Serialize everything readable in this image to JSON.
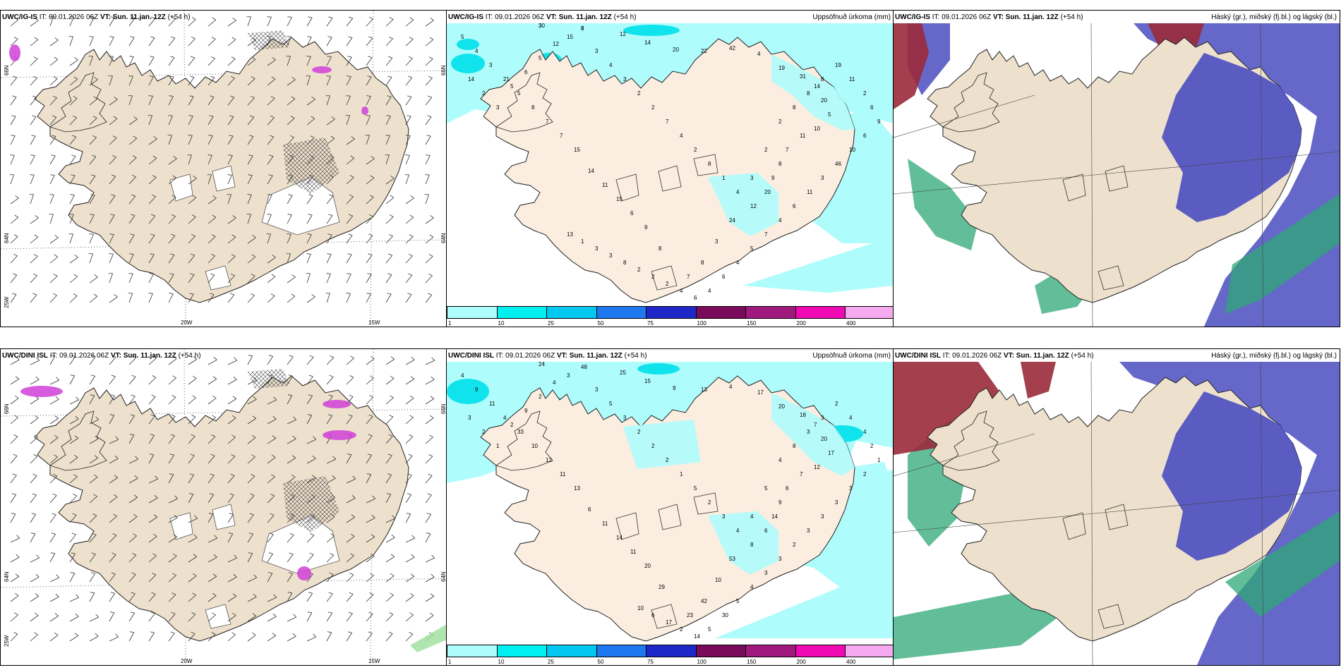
{
  "panels": {
    "p1": {
      "model": "UWC/IG-IS",
      "it": "IT: 09.01.2026 06Z",
      "vt_label": "VT:",
      "vt": "Sun. 11.jan. 12Z",
      "lead": "(+54 h)"
    },
    "p2": {
      "model": "UWC/IG-IS",
      "it": "IT: 09.01.2026 06Z",
      "vt_label": "VT:",
      "vt": "Sun. 11.jan. 12Z",
      "lead": "(+54 h)",
      "field": "Uppsöfnuð úrkoma (mm)"
    },
    "p3": {
      "model": "UWC/IG-IS",
      "it": "IT: 09.01.2026 06Z",
      "vt_label": "VT:",
      "vt": "Sun. 11.jan. 12Z",
      "lead": "(+54 h)",
      "field": "Háský (gr.), miðský (fj.bl.) og lágský (bl.)"
    },
    "p4": {
      "model": "UWC/DINI ISL",
      "it": "IT: 09.01.2026 06Z",
      "vt_label": "VT:",
      "vt": "Sun. 11.jan. 12Z",
      "lead": "(+54 h)"
    },
    "p5": {
      "model": "UWC/DINI ISL",
      "it": "IT: 09.01.2026 06Z",
      "vt_label": "VT:",
      "vt": "Sun. 11.jan. 12Z",
      "lead": "(+54 h)",
      "field": "Uppsöfnuð úrkoma (mm)"
    },
    "p6": {
      "model": "UWC/DINI ISL",
      "it": "IT: 09.01.2026 06Z",
      "vt_label": "VT:",
      "vt": "Sun. 11.jan. 12Z",
      "lead": "(+54 h)",
      "field": "Háský (gr.), miðský (fj.bl.) og lágský (bl.)"
    }
  },
  "axes": {
    "lon1": "20W",
    "lon2": "15W",
    "lat1": "66N",
    "lat2": "64N",
    "lon3": "25W"
  },
  "colorbar": {
    "labels": [
      "1",
      "10",
      "25",
      "50",
      "75",
      "100",
      "150",
      "200",
      "400"
    ],
    "colors": [
      "#aefcfc",
      "#00f0f0",
      "#00c8f0",
      "#1e78f0",
      "#1e28c8",
      "#7a0a5a",
      "#a0197d",
      "#f00ab4",
      "#f5aaf0"
    ]
  },
  "precip_values": {
    "p2": [
      "30",
      "7",
      "12",
      "14",
      "20",
      "22",
      "42",
      "4",
      "19",
      "31",
      "14",
      "20",
      "5",
      "10",
      "11",
      "7",
      "8",
      "9",
      "20",
      "12",
      "24",
      "3",
      "8",
      "7",
      "8",
      "9",
      "6",
      "15",
      "11",
      "14",
      "15",
      "7",
      "7",
      "8",
      "5",
      "21",
      "3",
      "4",
      "5",
      "14",
      "2",
      "3",
      "5",
      "6",
      "5",
      "12",
      "15",
      "3",
      "4",
      "3",
      "2",
      "2",
      "7",
      "4",
      "2",
      "8",
      "1",
      "4",
      "3",
      "2",
      "2",
      "8",
      "8",
      "8",
      "19",
      "11",
      "2",
      "6",
      "9",
      "6",
      "10",
      "46",
      "3",
      "11",
      "6",
      "4",
      "7",
      "5",
      "4",
      "6",
      "4",
      "6",
      "4",
      "2",
      "2",
      "2",
      "8",
      "3",
      "3",
      "1",
      "13",
      "3",
      "6"
    ],
    "p5": [
      "24",
      "48",
      "25",
      "15",
      "9",
      "13",
      "4",
      "17",
      "20",
      "18",
      "7",
      "20",
      "17",
      "12",
      "7",
      "6",
      "9",
      "14",
      "6",
      "8",
      "53",
      "10",
      "42",
      "23",
      "29",
      "20",
      "11",
      "14",
      "11",
      "6",
      "13",
      "11",
      "12",
      "10",
      "33",
      "4",
      "11",
      "9",
      "4",
      "3",
      "2",
      "1",
      "2",
      "9",
      "2",
      "4",
      "3",
      "3",
      "5",
      "3",
      "2",
      "2",
      "2",
      "1",
      "5",
      "2",
      "3",
      "4",
      "4",
      "5",
      "4",
      "8",
      "3",
      "3",
      "2",
      "4",
      "4",
      "2",
      "1",
      "2",
      "3",
      "3",
      "3",
      "3",
      "2",
      "3",
      "3",
      "4",
      "5",
      "30",
      "5",
      "14",
      "2",
      "17",
      "6",
      "10"
    ]
  }
}
